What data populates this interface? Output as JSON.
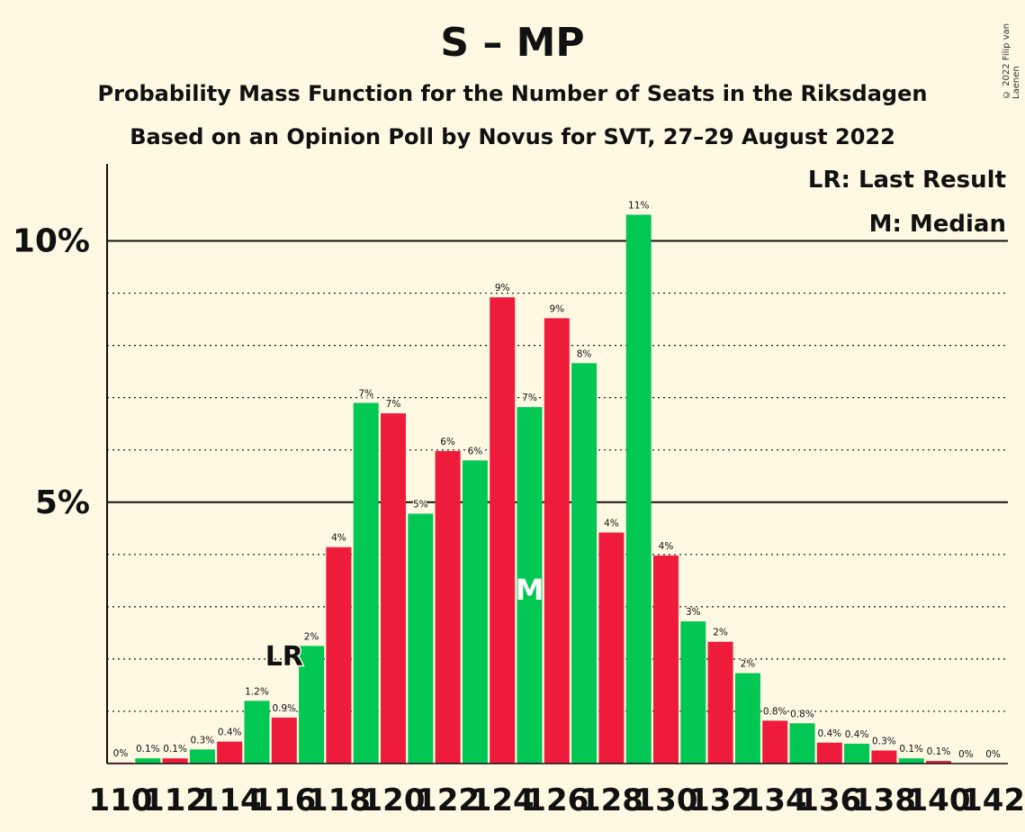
{
  "title": "S – MP",
  "subtitle1": "Probability Mass Function for the Number of Seats in the Riksdagen",
  "subtitle2": "Based on an Opinion Poll by Novus for SVT, 27–29 August 2022",
  "copyright": "© 2022 Filip van Laenen",
  "legend": {
    "last_result": "LR: Last Result",
    "median": "M: Median"
  },
  "colors": {
    "red": "#EE1C3A",
    "green": "#00C853",
    "background": "#FFF8E3"
  },
  "chart_data": {
    "type": "bar",
    "ylim": [
      0,
      11.5
    ],
    "y_tick_labels": [
      {
        "value": 5,
        "label": "5%"
      },
      {
        "value": 10,
        "label": "10%"
      }
    ],
    "x_tick_labels": [
      "110",
      "112",
      "114",
      "116",
      "118",
      "120",
      "122",
      "124",
      "126",
      "128",
      "130",
      "132",
      "134",
      "136",
      "138",
      "140",
      "142"
    ],
    "last_result": {
      "seat": 116,
      "label": "LR"
    },
    "median": {
      "seat": 125,
      "label": "M"
    },
    "bars": [
      {
        "seat": 110,
        "value": 0.02,
        "label": "0%",
        "color": "red"
      },
      {
        "seat": 111,
        "value": 0.1,
        "label": "0.1%",
        "color": "green"
      },
      {
        "seat": 112,
        "value": 0.1,
        "label": "0.1%",
        "color": "red"
      },
      {
        "seat": 113,
        "value": 0.27,
        "label": "0.3%",
        "color": "green"
      },
      {
        "seat": 114,
        "value": 0.42,
        "label": "0.4%",
        "color": "red"
      },
      {
        "seat": 115,
        "value": 1.2,
        "label": "1.2%",
        "color": "green"
      },
      {
        "seat": 116,
        "value": 0.88,
        "label": "0.9%",
        "color": "red"
      },
      {
        "seat": 117,
        "value": 2.25,
        "label": "2%",
        "color": "green"
      },
      {
        "seat": 118,
        "value": 4.14,
        "label": "4%",
        "color": "red"
      },
      {
        "seat": 119,
        "value": 6.9,
        "label": "7%",
        "color": "green"
      },
      {
        "seat": 120,
        "value": 6.7,
        "label": "7%",
        "color": "red"
      },
      {
        "seat": 121,
        "value": 4.78,
        "label": "5%",
        "color": "green"
      },
      {
        "seat": 122,
        "value": 5.98,
        "label": "6%",
        "color": "red"
      },
      {
        "seat": 123,
        "value": 5.8,
        "label": "6%",
        "color": "green"
      },
      {
        "seat": 124,
        "value": 8.92,
        "label": "9%",
        "color": "red"
      },
      {
        "seat": 125,
        "value": 6.82,
        "label": "7%",
        "color": "green"
      },
      {
        "seat": 126,
        "value": 8.52,
        "label": "9%",
        "color": "red"
      },
      {
        "seat": 127,
        "value": 7.66,
        "label": "8%",
        "color": "green"
      },
      {
        "seat": 128,
        "value": 4.42,
        "label": "4%",
        "color": "red"
      },
      {
        "seat": 129,
        "value": 10.5,
        "label": "11%",
        "color": "green"
      },
      {
        "seat": 130,
        "value": 3.98,
        "label": "4%",
        "color": "red"
      },
      {
        "seat": 131,
        "value": 2.72,
        "label": "3%",
        "color": "green"
      },
      {
        "seat": 132,
        "value": 2.33,
        "label": "2%",
        "color": "red"
      },
      {
        "seat": 133,
        "value": 1.73,
        "label": "2%",
        "color": "green"
      },
      {
        "seat": 134,
        "value": 0.82,
        "label": "0.8%",
        "color": "red"
      },
      {
        "seat": 135,
        "value": 0.77,
        "label": "0.8%",
        "color": "green"
      },
      {
        "seat": 136,
        "value": 0.4,
        "label": "0.4%",
        "color": "red"
      },
      {
        "seat": 137,
        "value": 0.38,
        "label": "0.4%",
        "color": "green"
      },
      {
        "seat": 138,
        "value": 0.25,
        "label": "0.3%",
        "color": "red"
      },
      {
        "seat": 139,
        "value": 0.1,
        "label": "0.1%",
        "color": "green"
      },
      {
        "seat": 140,
        "value": 0.05,
        "label": "0.1%",
        "color": "red"
      },
      {
        "seat": 141,
        "value": 0.0,
        "label": "0%",
        "color": "green"
      },
      {
        "seat": 142,
        "value": 0.0,
        "label": "0%",
        "color": "red"
      }
    ]
  }
}
